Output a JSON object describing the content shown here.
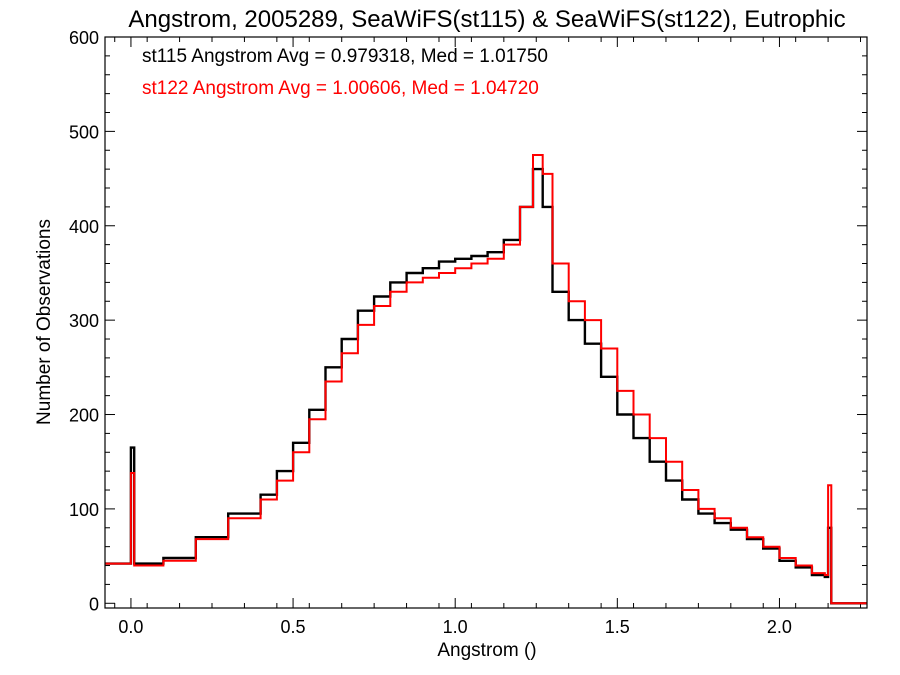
{
  "chart_data": {
    "type": "line",
    "style": "histogram-step",
    "title": "Angstrom, 2005289, SeaWiFS(st115) & SeaWiFS(st122), Eutrophic",
    "xlabel": "Angstrom ()",
    "ylabel": "Number of Observations",
    "xlim": [
      -0.08,
      2.27
    ],
    "ylim": [
      -5,
      600
    ],
    "x_ticks": [
      0.0,
      0.5,
      1.0,
      1.5,
      2.0
    ],
    "x_tick_labels": [
      "0.0",
      "0.5",
      "1.0",
      "1.5",
      "2.0"
    ],
    "y_ticks": [
      0,
      100,
      200,
      300,
      400,
      500,
      600
    ],
    "y_tick_labels": [
      "0",
      "100",
      "200",
      "300",
      "400",
      "500",
      "600"
    ],
    "grid": false,
    "annotations": [
      {
        "text": "st115 Angstrom Avg = 0.979318, Med = 1.01750",
        "color": "#000000"
      },
      {
        "text": "st122 Angstrom Avg = 1.00606, Med = 1.04720",
        "color": "#ff0000"
      }
    ],
    "series": [
      {
        "color": "#000000",
        "points": [
          [
            -0.08,
            42
          ],
          [
            0.0,
            165
          ],
          [
            0.01,
            42
          ],
          [
            0.1,
            48
          ],
          [
            0.2,
            70
          ],
          [
            0.3,
            95
          ],
          [
            0.4,
            115
          ],
          [
            0.45,
            140
          ],
          [
            0.5,
            170
          ],
          [
            0.55,
            205
          ],
          [
            0.6,
            250
          ],
          [
            0.65,
            280
          ],
          [
            0.7,
            310
          ],
          [
            0.75,
            325
          ],
          [
            0.8,
            340
          ],
          [
            0.85,
            350
          ],
          [
            0.9,
            355
          ],
          [
            0.95,
            362
          ],
          [
            1.0,
            365
          ],
          [
            1.05,
            368
          ],
          [
            1.1,
            372
          ],
          [
            1.15,
            385
          ],
          [
            1.2,
            420
          ],
          [
            1.24,
            460
          ],
          [
            1.27,
            420
          ],
          [
            1.3,
            330
          ],
          [
            1.35,
            300
          ],
          [
            1.4,
            275
          ],
          [
            1.45,
            240
          ],
          [
            1.5,
            200
          ],
          [
            1.55,
            175
          ],
          [
            1.6,
            150
          ],
          [
            1.65,
            130
          ],
          [
            1.7,
            110
          ],
          [
            1.75,
            95
          ],
          [
            1.8,
            85
          ],
          [
            1.85,
            78
          ],
          [
            1.9,
            68
          ],
          [
            1.95,
            58
          ],
          [
            2.0,
            45
          ],
          [
            2.05,
            38
          ],
          [
            2.1,
            30
          ],
          [
            2.14,
            28
          ],
          [
            2.15,
            80
          ],
          [
            2.16,
            0
          ],
          [
            2.27,
            0
          ]
        ]
      },
      {
        "color": "#ff0000",
        "points": [
          [
            -0.08,
            42
          ],
          [
            0.0,
            138
          ],
          [
            0.01,
            40
          ],
          [
            0.1,
            45
          ],
          [
            0.2,
            68
          ],
          [
            0.3,
            90
          ],
          [
            0.4,
            110
          ],
          [
            0.45,
            130
          ],
          [
            0.5,
            160
          ],
          [
            0.55,
            195
          ],
          [
            0.6,
            235
          ],
          [
            0.65,
            265
          ],
          [
            0.7,
            295
          ],
          [
            0.75,
            315
          ],
          [
            0.8,
            330
          ],
          [
            0.85,
            340
          ],
          [
            0.9,
            345
          ],
          [
            0.95,
            350
          ],
          [
            1.0,
            355
          ],
          [
            1.05,
            360
          ],
          [
            1.1,
            365
          ],
          [
            1.15,
            380
          ],
          [
            1.2,
            420
          ],
          [
            1.24,
            475
          ],
          [
            1.27,
            455
          ],
          [
            1.3,
            360
          ],
          [
            1.35,
            320
          ],
          [
            1.4,
            300
          ],
          [
            1.45,
            270
          ],
          [
            1.5,
            225
          ],
          [
            1.55,
            200
          ],
          [
            1.6,
            175
          ],
          [
            1.65,
            150
          ],
          [
            1.7,
            120
          ],
          [
            1.75,
            100
          ],
          [
            1.8,
            90
          ],
          [
            1.85,
            80
          ],
          [
            1.9,
            70
          ],
          [
            1.95,
            60
          ],
          [
            2.0,
            48
          ],
          [
            2.05,
            40
          ],
          [
            2.1,
            32
          ],
          [
            2.14,
            30
          ],
          [
            2.15,
            125
          ],
          [
            2.16,
            0
          ],
          [
            2.27,
            0
          ]
        ]
      }
    ]
  }
}
